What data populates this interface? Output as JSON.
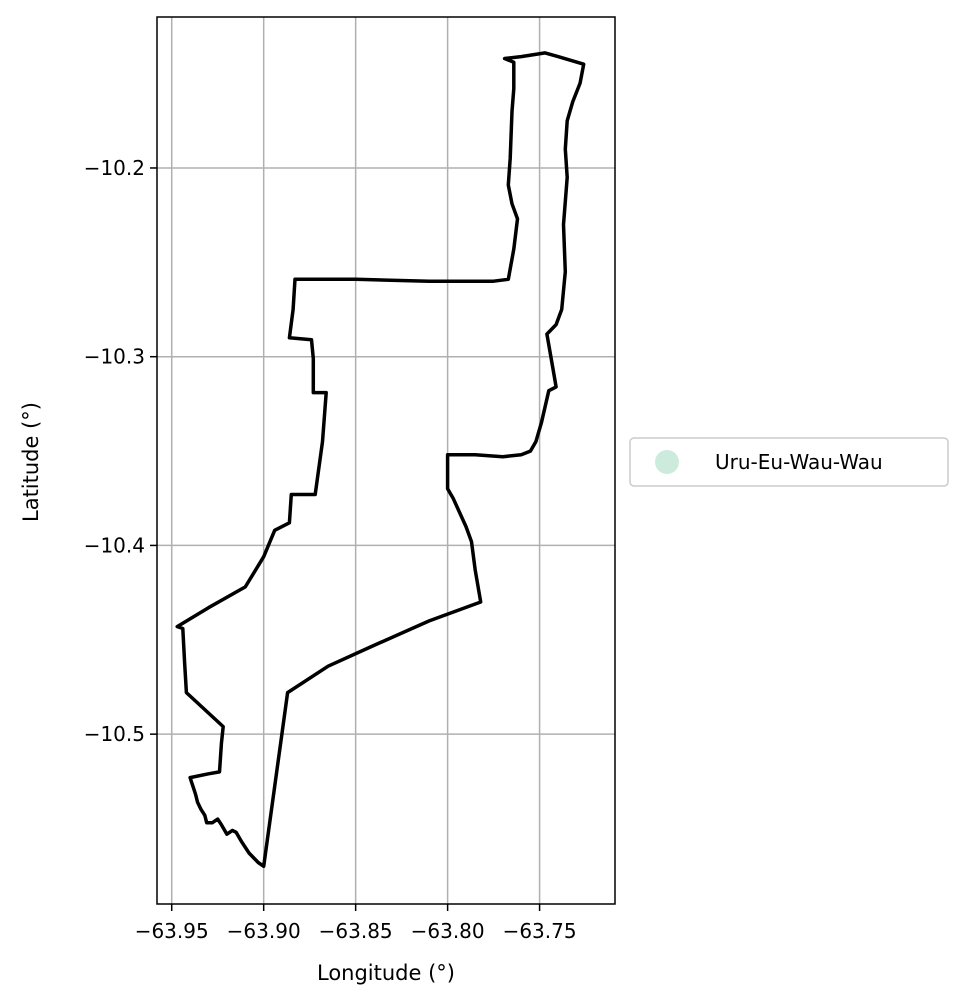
{
  "chart_data": {
    "type": "map",
    "xlabel": "Longitude (°)",
    "ylabel": "Latitude (°)",
    "xlim": [
      -63.958,
      -63.709
    ],
    "ylim": [
      -10.59,
      -10.12
    ],
    "xticks": [
      -63.95,
      -63.9,
      -63.85,
      -63.8,
      -63.75
    ],
    "xtick_labels": [
      "−63.95",
      "−63.90",
      "−63.85",
      "−63.80",
      "−63.75"
    ],
    "yticks": [
      -10.2,
      -10.3,
      -10.4,
      -10.5
    ],
    "ytick_labels": [
      "−10.2",
      "−10.3",
      "−10.4",
      "−10.5"
    ],
    "grid": true,
    "legend_position": "center-right",
    "series": [
      {
        "name": "Uru-Eu-Wau-Wau",
        "marker_color": "#cdebdc",
        "edge_color": "#000000",
        "boundary": [
          [
            -63.9,
            -10.57
          ],
          [
            -63.903,
            -10.568
          ],
          [
            -63.908,
            -10.563
          ],
          [
            -63.912,
            -10.557
          ],
          [
            -63.915,
            -10.552
          ],
          [
            -63.917,
            -10.551
          ],
          [
            -63.92,
            -10.553
          ],
          [
            -63.923,
            -10.548
          ],
          [
            -63.925,
            -10.545
          ],
          [
            -63.928,
            -10.547
          ],
          [
            -63.931,
            -10.547
          ],
          [
            -63.932,
            -10.543
          ],
          [
            -63.934,
            -10.54
          ],
          [
            -63.936,
            -10.536
          ],
          [
            -63.937,
            -10.532
          ],
          [
            -63.938,
            -10.529
          ],
          [
            -63.939,
            -10.526
          ],
          [
            -63.94,
            -10.523
          ],
          [
            -63.93,
            -10.521
          ],
          [
            -63.924,
            -10.52
          ],
          [
            -63.923,
            -10.505
          ],
          [
            -63.922,
            -10.496
          ],
          [
            -63.942,
            -10.478
          ],
          [
            -63.943,
            -10.462
          ],
          [
            -63.944,
            -10.444
          ],
          [
            -63.947,
            -10.443
          ],
          [
            -63.93,
            -10.433
          ],
          [
            -63.91,
            -10.422
          ],
          [
            -63.9,
            -10.406
          ],
          [
            -63.894,
            -10.392
          ],
          [
            -63.886,
            -10.388
          ],
          [
            -63.885,
            -10.373
          ],
          [
            -63.872,
            -10.373
          ],
          [
            -63.868,
            -10.345
          ],
          [
            -63.866,
            -10.319
          ],
          [
            -63.873,
            -10.319
          ],
          [
            -63.873,
            -10.301
          ],
          [
            -63.874,
            -10.291
          ],
          [
            -63.886,
            -10.29
          ],
          [
            -63.884,
            -10.275
          ],
          [
            -63.883,
            -10.259
          ],
          [
            -63.85,
            -10.259
          ],
          [
            -63.81,
            -10.26
          ],
          [
            -63.775,
            -10.26
          ],
          [
            -63.767,
            -10.259
          ],
          [
            -63.764,
            -10.243
          ],
          [
            -63.762,
            -10.227
          ],
          [
            -63.765,
            -10.219
          ],
          [
            -63.767,
            -10.209
          ],
          [
            -63.766,
            -10.195
          ],
          [
            -63.765,
            -10.17
          ],
          [
            -63.764,
            -10.158
          ],
          [
            -63.764,
            -10.144
          ],
          [
            -63.769,
            -10.142
          ],
          [
            -63.76,
            -10.141
          ],
          [
            -63.747,
            -10.139
          ],
          [
            -63.74,
            -10.141
          ],
          [
            -63.726,
            -10.145
          ],
          [
            -63.728,
            -10.155
          ],
          [
            -63.732,
            -10.165
          ],
          [
            -63.735,
            -10.175
          ],
          [
            -63.736,
            -10.19
          ],
          [
            -63.735,
            -10.205
          ],
          [
            -63.737,
            -10.23
          ],
          [
            -63.736,
            -10.255
          ],
          [
            -63.738,
            -10.275
          ],
          [
            -63.741,
            -10.283
          ],
          [
            -63.746,
            -10.288
          ],
          [
            -63.743,
            -10.305
          ],
          [
            -63.741,
            -10.316
          ],
          [
            -63.745,
            -10.318
          ],
          [
            -63.749,
            -10.335
          ],
          [
            -63.752,
            -10.345
          ],
          [
            -63.755,
            -10.35
          ],
          [
            -63.76,
            -10.352
          ],
          [
            -63.77,
            -10.353
          ],
          [
            -63.785,
            -10.352
          ],
          [
            -63.8,
            -10.352
          ],
          [
            -63.8,
            -10.37
          ],
          [
            -63.797,
            -10.375
          ],
          [
            -63.79,
            -10.39
          ],
          [
            -63.787,
            -10.398
          ],
          [
            -63.785,
            -10.413
          ],
          [
            -63.782,
            -10.43
          ],
          [
            -63.81,
            -10.44
          ],
          [
            -63.84,
            -10.453
          ],
          [
            -63.865,
            -10.464
          ],
          [
            -63.887,
            -10.478
          ],
          [
            -63.9,
            -10.57
          ]
        ]
      }
    ]
  }
}
